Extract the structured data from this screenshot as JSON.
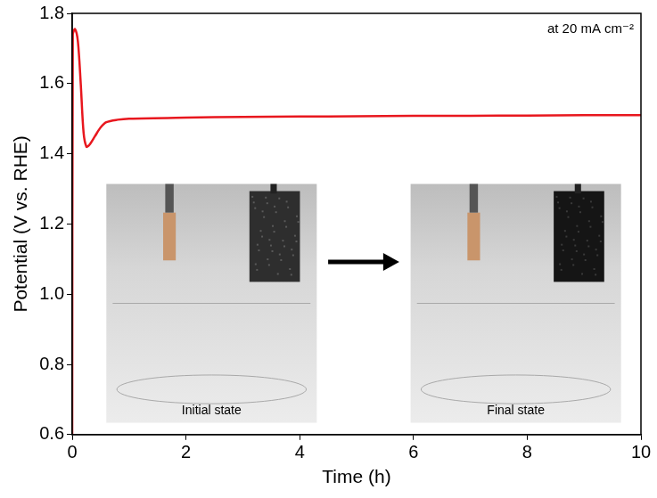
{
  "chart_data": {
    "type": "line",
    "x_label": "Time (h)",
    "y_label": "Potential (V vs. RHE)",
    "annotation": "at 20 mA cm⁻²",
    "insets": [
      {
        "label": "Initial state"
      },
      {
        "label": "Final state"
      }
    ],
    "x": [
      0,
      0.01,
      0.05,
      0.1,
      0.15,
      0.2,
      0.25,
      0.3,
      0.4,
      0.5,
      0.6,
      0.8,
      1,
      2,
      3,
      4,
      5,
      6,
      7,
      8,
      9,
      10
    ],
    "values": [
      0.6,
      1.74,
      1.755,
      1.72,
      1.6,
      1.46,
      1.42,
      1.425,
      1.45,
      1.475,
      1.49,
      1.497,
      1.5,
      1.503,
      1.505,
      1.506,
      1.507,
      1.508,
      1.508,
      1.509,
      1.51,
      1.51
    ],
    "color": "#e8171e",
    "xlim": [
      0,
      10
    ],
    "xticks": [
      0,
      2,
      4,
      6,
      8,
      10
    ],
    "ylim": [
      0.6,
      1.8
    ],
    "yticks": [
      0.6,
      0.8,
      {
        "value": 1,
        "label": "1.0"
      },
      1.2,
      1.4,
      1.6,
      1.8
    ],
    "grid": false
  }
}
